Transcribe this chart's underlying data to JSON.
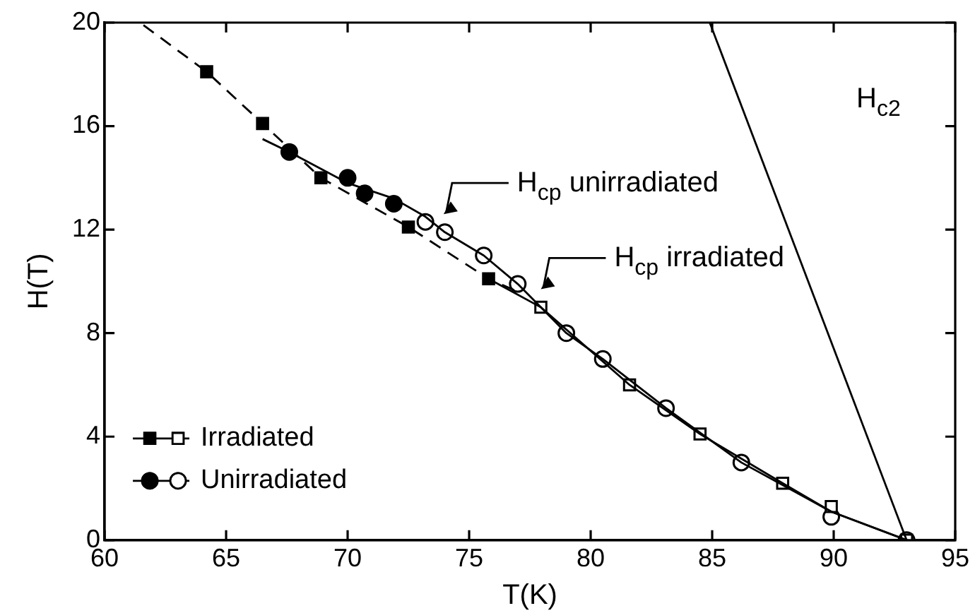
{
  "chart_data": {
    "type": "scatter",
    "xlabel": "T(K)",
    "ylabel": "H(T)",
    "xlim": [
      60,
      95
    ],
    "xticks": [
      60,
      65,
      70,
      75,
      80,
      85,
      90,
      95
    ],
    "ylim": [
      0,
      20
    ],
    "yticks": [
      0,
      4,
      8,
      12,
      16,
      20
    ],
    "grid": false,
    "legend": "bottom left",
    "series": [
      {
        "type": "line",
        "color": "#000000",
        "marker": "none",
        "line_style": "dashed",
        "x": [
          61.6,
          64.2,
          66.5,
          68.9,
          72.5,
          75.8,
          77.0
        ],
        "values": [
          19.9,
          18.1,
          16.1,
          14.0,
          12.1,
          10.1,
          9.6
        ]
      },
      {
        "type": "line",
        "color": "#000000",
        "marker": "none",
        "line_style": "solid",
        "x": [
          66.5,
          67.6,
          70.0,
          71.9,
          73.2,
          74.0,
          75.6,
          77.0,
          79.0,
          80.5,
          83.1,
          86.2,
          89.9,
          93.0
        ],
        "values": [
          15.5,
          15.0,
          13.8,
          13.2,
          12.5,
          11.9,
          11.0,
          9.9,
          8.0,
          7.0,
          5.1,
          3.0,
          1.1,
          0
        ]
      },
      {
        "type": "line",
        "color": "#000000",
        "marker": "none",
        "line_style": "solid",
        "x": [
          75.8,
          77.95,
          81.6,
          84.5,
          87.9,
          89.9,
          93.0
        ],
        "values": [
          10.1,
          9.0,
          6.0,
          4.1,
          2.2,
          1.1,
          0
        ]
      },
      {
        "type": "line",
        "color": "#000000",
        "marker": "none",
        "line_style": "solid",
        "x": [
          84.9,
          93.0
        ],
        "values": [
          20,
          0
        ]
      },
      {
        "name": "Irradiated",
        "color": "#000000",
        "marker": "square",
        "x": [
          64.2,
          66.5,
          68.9,
          72.5,
          75.8
        ],
        "values": [
          18.1,
          16.1,
          14.0,
          12.1,
          10.1
        ]
      },
      {
        "color": "#ffffff",
        "marker": "square",
        "x": [
          77.95,
          81.6,
          84.5,
          87.9,
          89.9,
          93.0
        ],
        "values": [
          9.0,
          6.0,
          4.1,
          2.2,
          1.3,
          0
        ]
      },
      {
        "name": "Unirradiated",
        "color": "#000000",
        "marker": "circle",
        "x": [
          67.6,
          70.0,
          70.7,
          71.9
        ],
        "values": [
          15.0,
          14.0,
          13.4,
          13.0
        ]
      },
      {
        "color": "#ffffff",
        "marker": "circle",
        "x": [
          73.2,
          74.0,
          75.6,
          77.0,
          79.0,
          80.5,
          83.1,
          86.2,
          89.9,
          93.0
        ],
        "values": [
          12.3,
          11.9,
          11.0,
          9.9,
          8.0,
          7.0,
          5.1,
          3.0,
          0.9,
          0
        ]
      }
    ],
    "annotations": [
      {
        "text": "H$_{cp}$ unirradiated",
        "x": 73.6,
        "y": 12.6
      },
      {
        "text": "H$_{cp}$ irradiated",
        "x": 77.6,
        "y": 9.7
      },
      "H$_{c2}$"
    ]
  }
}
